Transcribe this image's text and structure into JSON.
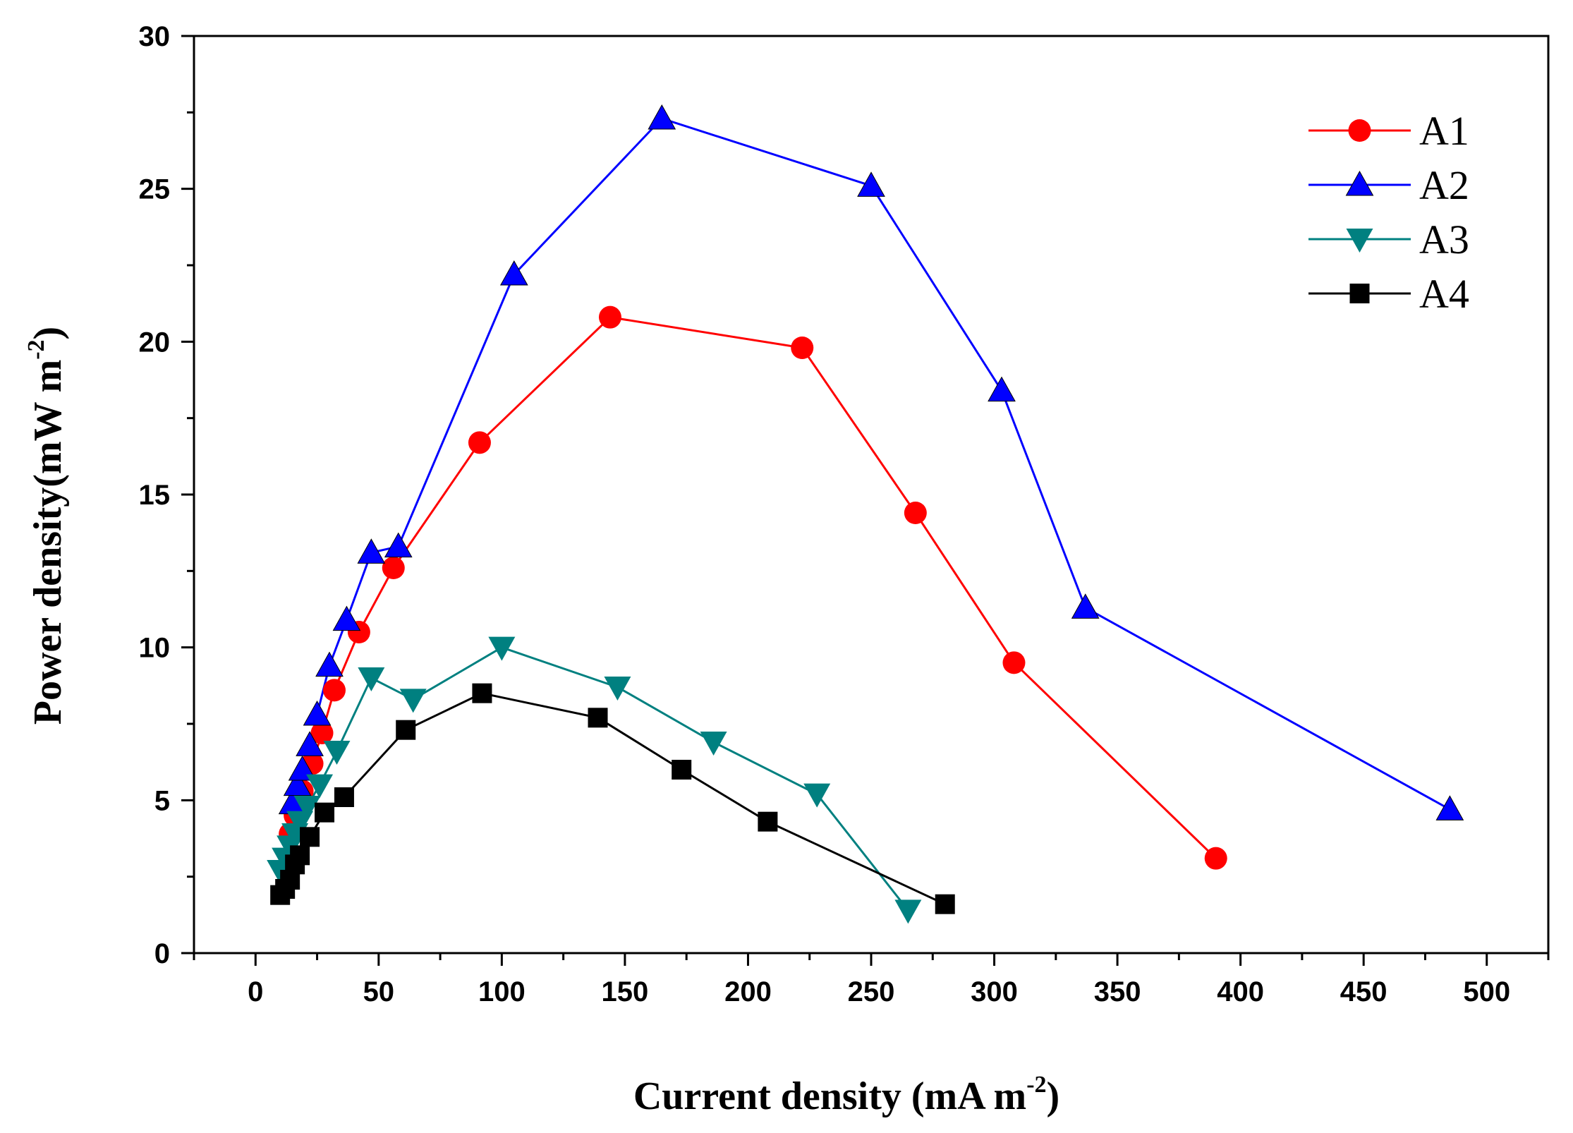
{
  "chart_data": {
    "type": "line",
    "title": "",
    "xlabel": "Current density (mA m",
    "xlabel_sup": "-2",
    "xlabel_end": ")",
    "ylabel": "Power density(mW m",
    "ylabel_sup": "-2",
    "ylabel_end": ")",
    "xlim": [
      -25,
      525
    ],
    "ylim": [
      0,
      30
    ],
    "xticks": [
      0,
      50,
      100,
      150,
      200,
      250,
      300,
      350,
      400,
      450,
      500
    ],
    "yticks": [
      0,
      5,
      10,
      15,
      20,
      25,
      30
    ],
    "grid": false,
    "legend_position": "top-right",
    "series": [
      {
        "name": "A1",
        "color": "#ff0000",
        "marker": "circle",
        "points": [
          [
            14,
            3.9
          ],
          [
            16,
            4.5
          ],
          [
            19,
            5.3
          ],
          [
            23,
            6.2
          ],
          [
            27,
            7.2
          ],
          [
            32,
            8.6
          ],
          [
            42,
            10.5
          ],
          [
            56,
            12.6
          ],
          [
            91,
            16.7
          ],
          [
            144,
            20.8
          ],
          [
            222,
            19.8
          ],
          [
            268,
            14.4
          ],
          [
            308,
            9.5
          ],
          [
            390,
            3.1
          ]
        ]
      },
      {
        "name": "A2",
        "color": "#0000ff",
        "marker": "triangle-up",
        "points": [
          [
            15,
            4.9
          ],
          [
            17,
            5.5
          ],
          [
            19,
            6.0
          ],
          [
            22,
            6.8
          ],
          [
            25,
            7.8
          ],
          [
            30,
            9.4
          ],
          [
            37,
            10.9
          ],
          [
            47,
            13.1
          ],
          [
            58,
            13.3
          ],
          [
            105,
            22.2
          ],
          [
            165,
            27.3
          ],
          [
            250,
            25.1
          ],
          [
            303,
            18.4
          ],
          [
            337,
            11.3
          ],
          [
            485,
            4.7
          ]
        ]
      },
      {
        "name": "A3",
        "color": "#008080",
        "marker": "triangle-down",
        "points": [
          [
            10,
            2.7
          ],
          [
            12,
            3.1
          ],
          [
            14,
            3.5
          ],
          [
            16,
            3.9
          ],
          [
            18,
            4.3
          ],
          [
            21,
            4.8
          ],
          [
            26,
            5.5
          ],
          [
            33,
            6.6
          ],
          [
            47,
            9.0
          ],
          [
            64,
            8.3
          ],
          [
            100,
            10.0
          ],
          [
            147,
            8.7
          ],
          [
            186,
            6.9
          ],
          [
            228,
            5.2
          ],
          [
            265,
            1.4
          ]
        ]
      },
      {
        "name": "A4",
        "color": "#000000",
        "marker": "square",
        "points": [
          [
            10,
            1.9
          ],
          [
            12,
            2.1
          ],
          [
            14,
            2.4
          ],
          [
            16,
            2.9
          ],
          [
            18,
            3.2
          ],
          [
            22,
            3.8
          ],
          [
            28,
            4.6
          ],
          [
            36,
            5.1
          ],
          [
            61,
            7.3
          ],
          [
            92,
            8.5
          ],
          [
            139,
            7.7
          ],
          [
            173,
            6.0
          ],
          [
            208,
            4.3
          ],
          [
            280,
            1.6
          ]
        ]
      }
    ]
  }
}
